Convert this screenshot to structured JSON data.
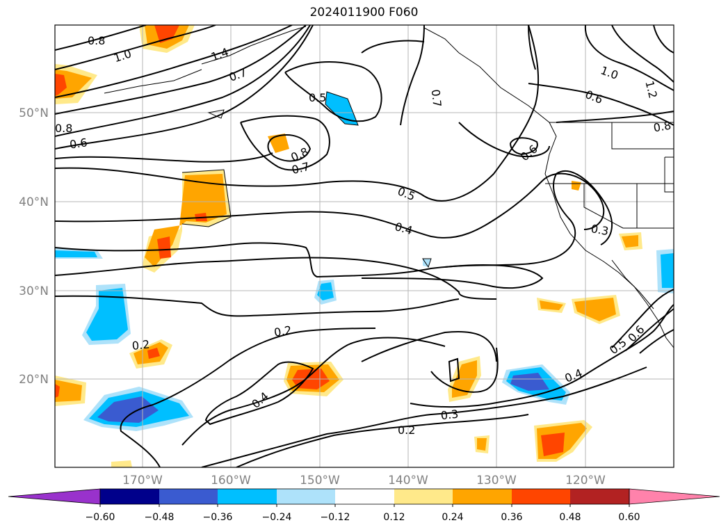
{
  "title": "2024011900 F060",
  "map": {
    "lat_labels": [
      "50°N",
      "40°N",
      "30°N",
      "20°N"
    ],
    "lon_labels": [
      "170°W",
      "160°W",
      "150°W",
      "140°W",
      "130°W",
      "120°W"
    ],
    "contour_labels": [
      "0.8",
      "1.0",
      "1.4",
      "0.7",
      "0.5",
      "0.7",
      "1.0",
      "1.2",
      "0.6",
      "0.8",
      "0.6",
      "0.8",
      "0.7",
      "0.6",
      "0.5",
      "0.4",
      "0.3",
      "0.2",
      "0.2",
      "0.4",
      "0.3",
      "0.2",
      "0.4",
      "0.5",
      "0.6",
      "0.8"
    ]
  },
  "colorbar": {
    "ticks": [
      "−0.60",
      "−0.48",
      "−0.36",
      "−0.24",
      "−0.12",
      "0.12",
      "0.24",
      "0.36",
      "0.48",
      "0.60"
    ],
    "colors": [
      "#9932cc",
      "#00008b",
      "#3a5bd0",
      "#00bfff",
      "#aee2fa",
      "#ffffff",
      "#ffe98a",
      "#ffa500",
      "#ff4500",
      "#b22222",
      "#ff82ab"
    ]
  }
}
